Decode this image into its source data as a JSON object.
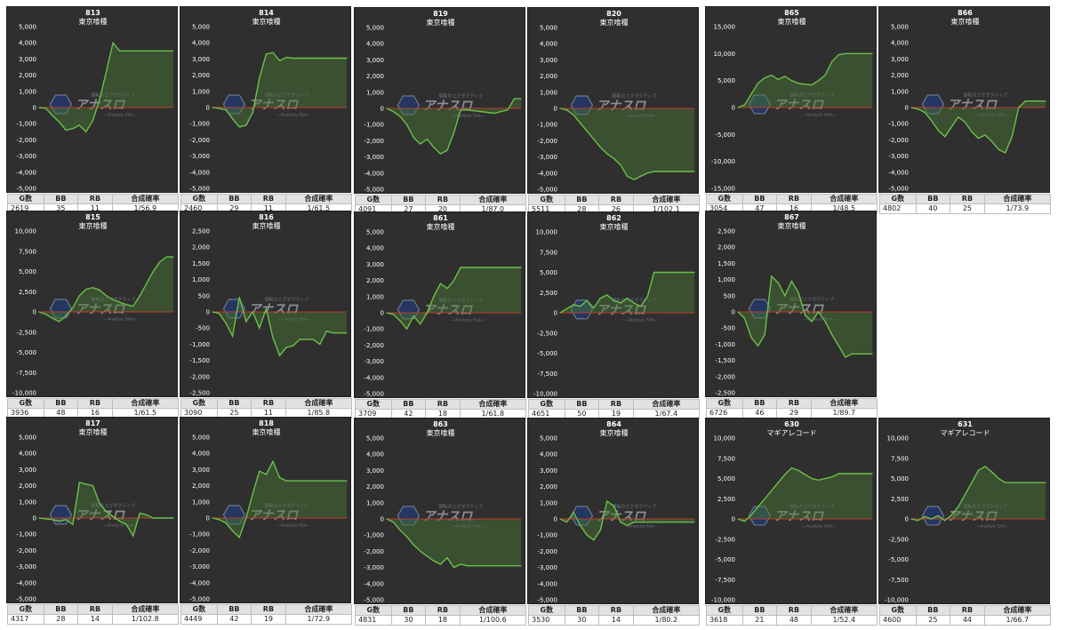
{
  "table_headers": [
    "G数",
    "BB",
    "RB",
    "合成確率"
  ],
  "logo": {
    "lines": [
      "アナスロ",
      "―Analysis Slot―"
    ],
    "caption": "旋転のエグゼクティブ"
  },
  "colors": {
    "panel_bg": "#2f2f2f",
    "line": "#6cc04a",
    "fill": "#4a7a34",
    "zero_line": "#c0392b",
    "tick": "#ffffff"
  },
  "chart_data": [
    {
      "type": "area",
      "title": "813",
      "subtitle": "東京喰種",
      "ylim": [
        -5000,
        5000
      ],
      "yticks": [
        -5000,
        -4000,
        -3000,
        -2000,
        -1000,
        0,
        1000,
        2000,
        3000,
        4000,
        5000
      ],
      "x": [
        0,
        5,
        10,
        15,
        20,
        25,
        30,
        35,
        40,
        45,
        50,
        55,
        60,
        65,
        70,
        75,
        80,
        85,
        90,
        95,
        100
      ],
      "values": [
        0,
        -50,
        -500,
        -900,
        -1400,
        -1300,
        -1100,
        -1500,
        -800,
        500,
        2200,
        4000,
        3500,
        3500,
        3500,
        3500,
        3500,
        3500,
        3500,
        3500,
        3500
      ],
      "stats": {
        "g": "2619",
        "bb": "35",
        "rb": "11",
        "rate": "1/56.9"
      }
    },
    {
      "type": "area",
      "title": "814",
      "subtitle": "東京喰種",
      "ylim": [
        -5000,
        5000
      ],
      "yticks": [
        -5000,
        -4000,
        -3000,
        -2000,
        -1000,
        0,
        1000,
        2000,
        3000,
        4000,
        5000
      ],
      "x": [
        0,
        5,
        10,
        15,
        20,
        25,
        30,
        35,
        40,
        45,
        50,
        55,
        60,
        65,
        70,
        75,
        80,
        85,
        90,
        95,
        100
      ],
      "values": [
        0,
        -50,
        -150,
        -700,
        -1200,
        -1100,
        -300,
        1800,
        3300,
        3400,
        2900,
        3100,
        3050,
        3050,
        3050,
        3050,
        3050,
        3050,
        3050,
        3050,
        3050
      ],
      "stats": {
        "g": "2460",
        "bb": "29",
        "rb": "11",
        "rate": "1/61.5"
      }
    },
    {
      "type": "area",
      "title": "819",
      "subtitle": "東京喰種",
      "ylim": [
        -5000,
        5000
      ],
      "yticks": [
        -5000,
        -4000,
        -3000,
        -2000,
        -1000,
        0,
        1000,
        2000,
        3000,
        4000,
        5000
      ],
      "x": [
        0,
        5,
        10,
        15,
        20,
        25,
        30,
        35,
        40,
        45,
        50,
        55,
        60,
        65,
        70,
        75,
        80,
        85,
        90,
        95,
        100
      ],
      "values": [
        0,
        -200,
        -500,
        -1000,
        -1800,
        -2200,
        -1900,
        -2400,
        -2800,
        -2600,
        -1500,
        -100,
        -100,
        -150,
        -200,
        -250,
        -300,
        -200,
        -100,
        600,
        600
      ],
      "stats": {
        "g": "4091",
        "bb": "27",
        "rb": "20",
        "rate": "1/87.0"
      }
    },
    {
      "type": "area",
      "title": "820",
      "subtitle": "東京喰種",
      "ylim": [
        -5000,
        5000
      ],
      "yticks": [
        -5000,
        -4000,
        -3000,
        -2000,
        -1000,
        0,
        1000,
        2000,
        3000,
        4000,
        5000
      ],
      "x": [
        0,
        5,
        10,
        15,
        20,
        25,
        30,
        35,
        40,
        45,
        50,
        55,
        60,
        65,
        70,
        75,
        80,
        85,
        90,
        95,
        100
      ],
      "values": [
        0,
        -100,
        -400,
        -900,
        -1400,
        -1900,
        -2400,
        -2800,
        -3100,
        -3500,
        -4200,
        -4400,
        -4200,
        -4000,
        -3900,
        -3900,
        -3900,
        -3900,
        -3900,
        -3900,
        -3900
      ],
      "stats": {
        "g": "5511",
        "bb": "28",
        "rb": "26",
        "rate": "1/102.1"
      }
    },
    {
      "type": "area",
      "title": "865",
      "subtitle": "東京喰種",
      "ylim": [
        -15000,
        15000
      ],
      "yticks": [
        -15000,
        -10000,
        -5000,
        0,
        5000,
        10000,
        15000
      ],
      "x": [
        0,
        5,
        10,
        15,
        20,
        25,
        30,
        35,
        40,
        45,
        50,
        55,
        60,
        65,
        70,
        75,
        80,
        85,
        90,
        95,
        100
      ],
      "values": [
        0,
        500,
        2500,
        4500,
        5500,
        6000,
        5200,
        5800,
        5000,
        4500,
        4300,
        4200,
        5000,
        6000,
        8500,
        9800,
        10000,
        10000,
        10000,
        10000,
        10000
      ],
      "stats": {
        "g": "3054",
        "bb": "47",
        "rb": "16",
        "rate": "1/48.5"
      }
    },
    {
      "type": "area",
      "title": "866",
      "subtitle": "東京喰種",
      "ylim": [
        -5000,
        5000
      ],
      "yticks": [
        -5000,
        -4000,
        -3000,
        -2000,
        -1000,
        0,
        1000,
        2000,
        3000,
        4000,
        5000
      ],
      "x": [
        0,
        5,
        10,
        15,
        20,
        25,
        30,
        35,
        40,
        45,
        50,
        55,
        60,
        65,
        70,
        75,
        80,
        85,
        90,
        95,
        100
      ],
      "values": [
        0,
        -100,
        -300,
        -800,
        -1400,
        -1800,
        -1200,
        -600,
        -900,
        -1500,
        -1900,
        -1700,
        -2100,
        -2600,
        -2800,
        -1800,
        0,
        400,
        400,
        400,
        400
      ],
      "stats": {
        "g": "4802",
        "bb": "40",
        "rb": "25",
        "rate": "1/73.9"
      }
    },
    {
      "type": "area",
      "title": "815",
      "subtitle": "東京喰種",
      "ylim": [
        -10000,
        10000
      ],
      "yticks": [
        -10000,
        -7500,
        -5000,
        -2500,
        0,
        2500,
        5000,
        7500,
        10000
      ],
      "x": [
        0,
        5,
        10,
        15,
        20,
        25,
        30,
        35,
        40,
        45,
        50,
        55,
        60,
        65,
        70,
        75,
        80,
        85,
        90,
        95,
        100
      ],
      "values": [
        0,
        -300,
        -800,
        -1200,
        -500,
        500,
        2000,
        2800,
        3000,
        2700,
        2000,
        1500,
        1200,
        900,
        700,
        2000,
        3500,
        5000,
        6200,
        6800,
        6800
      ],
      "stats": {
        "g": "3936",
        "bb": "48",
        "rb": "16",
        "rate": "1/61.5"
      }
    },
    {
      "type": "area",
      "title": "816",
      "subtitle": "東京喰種",
      "ylim": [
        -2500,
        2500
      ],
      "yticks": [
        -2500,
        -2000,
        -1500,
        -1000,
        -500,
        0,
        500,
        1000,
        1500,
        2000,
        2500
      ],
      "x": [
        0,
        5,
        10,
        15,
        20,
        25,
        30,
        35,
        40,
        45,
        50,
        55,
        60,
        65,
        70,
        75,
        80,
        85,
        90,
        95,
        100
      ],
      "values": [
        0,
        -50,
        -350,
        -750,
        450,
        -300,
        0,
        -500,
        100,
        -800,
        -1350,
        -1100,
        -1050,
        -850,
        -850,
        -850,
        -1000,
        -600,
        -650,
        -650,
        -650
      ],
      "stats": {
        "g": "3090",
        "bb": "25",
        "rb": "11",
        "rate": "1/85.8"
      }
    },
    {
      "type": "area",
      "title": "861",
      "subtitle": "東京喰種",
      "ylim": [
        -5000,
        5000
      ],
      "yticks": [
        -5000,
        -4000,
        -3000,
        -2000,
        -1000,
        0,
        1000,
        2000,
        3000,
        4000,
        5000
      ],
      "x": [
        0,
        5,
        10,
        15,
        20,
        25,
        30,
        35,
        40,
        45,
        50,
        55,
        60,
        65,
        70,
        75,
        80,
        85,
        90,
        95,
        100
      ],
      "values": [
        0,
        -100,
        -500,
        -1000,
        -200,
        -700,
        0,
        1000,
        1800,
        1500,
        2000,
        2800,
        2800,
        2800,
        2800,
        2800,
        2800,
        2800,
        2800,
        2800,
        2800
      ],
      "stats": {
        "g": "3709",
        "bb": "42",
        "rb": "18",
        "rate": "1/61.8"
      }
    },
    {
      "type": "area",
      "title": "862",
      "subtitle": "東京喰種",
      "ylim": [
        -10000,
        10000
      ],
      "yticks": [
        -10000,
        -7500,
        -5000,
        -2500,
        0,
        2500,
        5000,
        7500,
        10000
      ],
      "x": [
        0,
        5,
        10,
        15,
        20,
        25,
        30,
        35,
        40,
        45,
        50,
        55,
        60,
        65,
        70,
        75,
        80,
        85,
        90,
        95,
        100
      ],
      "values": [
        0,
        500,
        1000,
        800,
        1500,
        600,
        1800,
        2200,
        1500,
        1200,
        1800,
        1200,
        800,
        2000,
        5000,
        5000,
        5000,
        5000,
        5000,
        5000,
        5000
      ],
      "stats": {
        "g": "4651",
        "bb": "50",
        "rb": "19",
        "rate": "1/67.4"
      }
    },
    {
      "type": "area",
      "title": "867",
      "subtitle": "東京喰種",
      "ylim": [
        -2500,
        2500
      ],
      "yticks": [
        -2500,
        -2000,
        -1500,
        -1000,
        -500,
        0,
        500,
        1000,
        1500,
        2000,
        2500
      ],
      "x": [
        0,
        5,
        10,
        15,
        20,
        25,
        30,
        35,
        40,
        45,
        50,
        55,
        60,
        65,
        70,
        75,
        80,
        85,
        90,
        95,
        100
      ],
      "values": [
        0,
        -200,
        -800,
        -1050,
        -700,
        1100,
        900,
        500,
        950,
        600,
        -100,
        -300,
        0,
        -300,
        -700,
        -1050,
        -1400,
        -1300,
        -1300,
        -1300,
        -1300
      ],
      "stats": {
        "g": "6726",
        "bb": "46",
        "rb": "29",
        "rate": "1/89.7"
      }
    },
    {
      "type": "area",
      "title": "817",
      "subtitle": "東京喰種",
      "ylim": [
        -5000,
        5000
      ],
      "yticks": [
        -5000,
        -4000,
        -3000,
        -2000,
        -1000,
        0,
        1000,
        2000,
        3000,
        4000,
        5000
      ],
      "x": [
        0,
        5,
        10,
        15,
        20,
        25,
        30,
        35,
        40,
        45,
        50,
        55,
        60,
        65,
        70,
        75,
        80,
        85,
        90,
        95,
        100
      ],
      "values": [
        0,
        -50,
        -100,
        -200,
        -100,
        -400,
        2200,
        2100,
        2000,
        900,
        400,
        100,
        -200,
        -400,
        -1100,
        300,
        200,
        0,
        0,
        0,
        0
      ],
      "stats": {
        "g": "4317",
        "bb": "28",
        "rb": "14",
        "rate": "1/102.8"
      }
    },
    {
      "type": "area",
      "title": "818",
      "subtitle": "東京喰種",
      "ylim": [
        -5000,
        5000
      ],
      "yticks": [
        -5000,
        -4000,
        -3000,
        -2000,
        -1000,
        0,
        1000,
        2000,
        3000,
        4000,
        5000
      ],
      "x": [
        0,
        5,
        10,
        15,
        20,
        25,
        30,
        35,
        40,
        45,
        50,
        55,
        60,
        65,
        70,
        75,
        80,
        85,
        90,
        95,
        100
      ],
      "values": [
        0,
        -100,
        -300,
        -800,
        -1200,
        0,
        1500,
        2900,
        2700,
        3500,
        2500,
        2300,
        2300,
        2300,
        2300,
        2300,
        2300,
        2300,
        2300,
        2300,
        2300
      ],
      "stats": {
        "g": "4449",
        "bb": "42",
        "rb": "19",
        "rate": "1/72.9"
      }
    },
    {
      "type": "area",
      "title": "863",
      "subtitle": "東京喰種",
      "ylim": [
        -5000,
        5000
      ],
      "yticks": [
        -5000,
        -4000,
        -3000,
        -2000,
        -1000,
        0,
        1000,
        2000,
        3000,
        4000,
        5000
      ],
      "x": [
        0,
        5,
        10,
        15,
        20,
        25,
        30,
        35,
        40,
        45,
        50,
        55,
        60,
        65,
        70,
        75,
        80,
        85,
        90,
        95,
        100
      ],
      "values": [
        0,
        -200,
        -700,
        -1100,
        -1600,
        -2000,
        -2300,
        -2600,
        -2800,
        -2400,
        -3000,
        -2800,
        -2900,
        -2900,
        -2900,
        -2900,
        -2900,
        -2900,
        -2900,
        -2900,
        -2900
      ],
      "stats": {
        "g": "4831",
        "bb": "30",
        "rb": "18",
        "rate": "1/100.6"
      }
    },
    {
      "type": "area",
      "title": "864",
      "subtitle": "東京喰種",
      "ylim": [
        -5000,
        5000
      ],
      "yticks": [
        -5000,
        -4000,
        -3000,
        -2000,
        -1000,
        0,
        1000,
        2000,
        3000,
        4000,
        5000
      ],
      "x": [
        0,
        5,
        10,
        15,
        20,
        25,
        30,
        35,
        40,
        45,
        50,
        55,
        60,
        65,
        70,
        75,
        80,
        85,
        90,
        95,
        100
      ],
      "values": [
        0,
        -200,
        400,
        -400,
        -1000,
        -1300,
        -700,
        1100,
        800,
        -200,
        -400,
        -200,
        -200,
        -200,
        -200,
        -200,
        -200,
        -200,
        -200,
        -200,
        -200
      ],
      "stats": {
        "g": "3530",
        "bb": "30",
        "rb": "14",
        "rate": "1/80.2"
      }
    },
    {
      "type": "area",
      "title": "630",
      "subtitle": "マギアレコード",
      "ylim": [
        -10000,
        10000
      ],
      "yticks": [
        -10000,
        -7500,
        -5000,
        -2500,
        0,
        2500,
        5000,
        7500,
        10000
      ],
      "x": [
        0,
        5,
        10,
        15,
        20,
        25,
        30,
        35,
        40,
        45,
        50,
        55,
        60,
        65,
        70,
        75,
        80,
        85,
        90,
        95,
        100
      ],
      "values": [
        0,
        -300,
        500,
        1500,
        2500,
        3500,
        4500,
        5500,
        6300,
        6000,
        5500,
        5000,
        4800,
        5000,
        5200,
        5600,
        5600,
        5600,
        5600,
        5600,
        5600
      ],
      "stats": {
        "g": "3618",
        "bb": "21",
        "rb": "48",
        "rate": "1/52.4"
      }
    },
    {
      "type": "area",
      "title": "631",
      "subtitle": "マギアレコード",
      "ylim": [
        -10000,
        10000
      ],
      "yticks": [
        -10000,
        -7500,
        -5000,
        -2500,
        0,
        2500,
        5000,
        7500,
        10000
      ],
      "x": [
        0,
        5,
        10,
        15,
        20,
        25,
        30,
        35,
        40,
        45,
        50,
        55,
        60,
        65,
        70,
        75,
        80,
        85,
        90,
        95,
        100
      ],
      "values": [
        0,
        -200,
        300,
        0,
        400,
        -200,
        500,
        1500,
        3000,
        4500,
        6000,
        6500,
        5800,
        5000,
        4500,
        4500,
        4500,
        4500,
        4500,
        4500,
        4500
      ],
      "stats": {
        "g": "4600",
        "bb": "25",
        "rb": "44",
        "rate": "1/66.7"
      }
    }
  ]
}
